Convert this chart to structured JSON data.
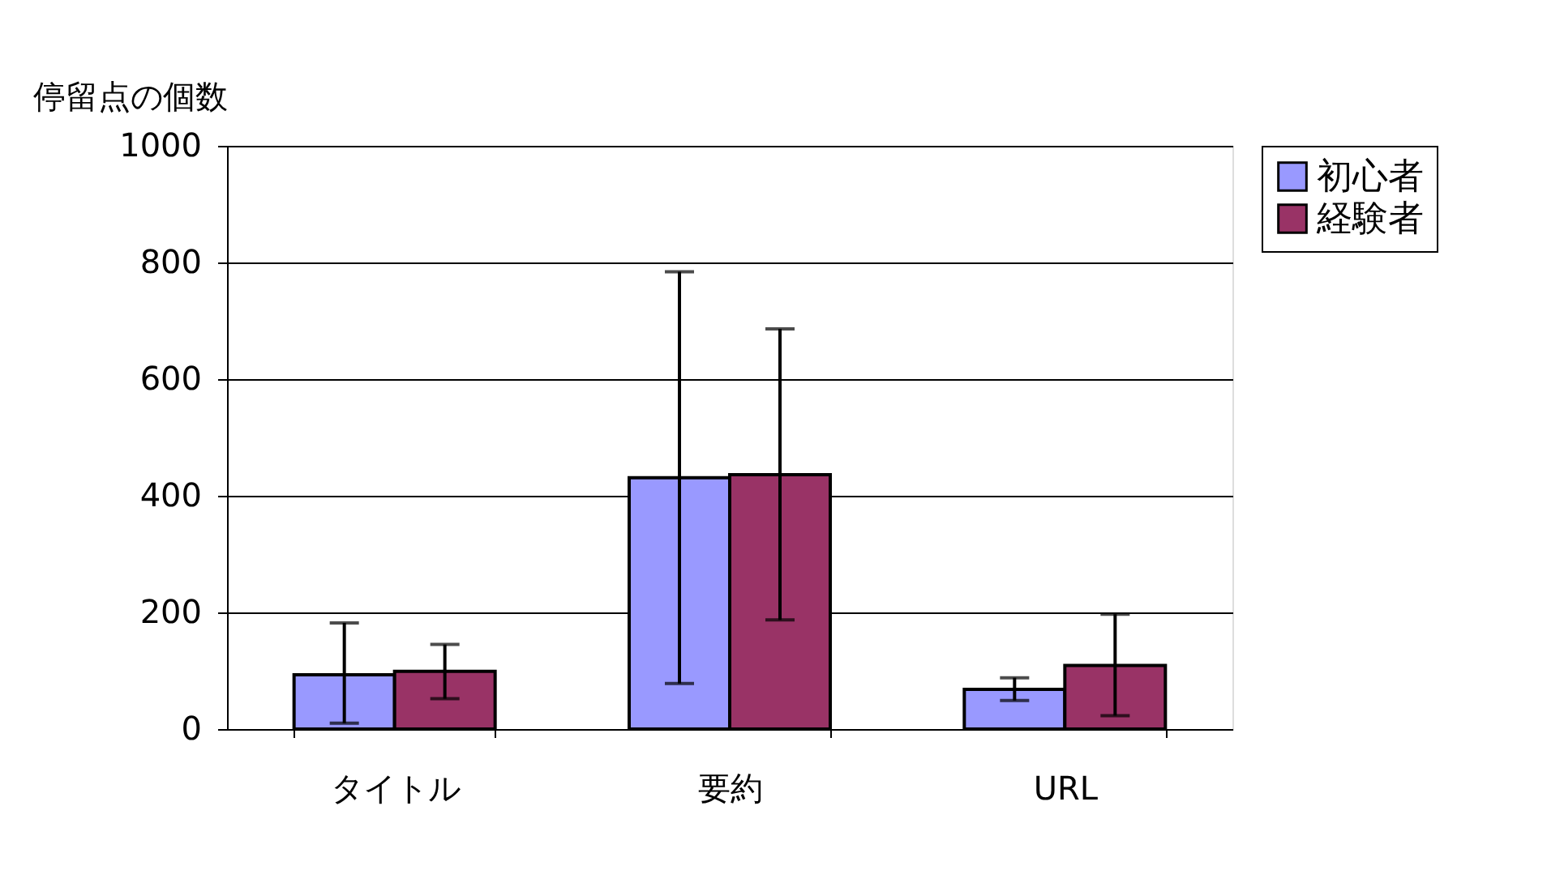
{
  "chart_data": {
    "type": "bar",
    "ylabel": "停留点の個数",
    "categories": [
      "タイトル",
      "要約",
      "URL"
    ],
    "series": [
      {
        "name": "初心者",
        "color": "#9999ff",
        "values": [
          93,
          431,
          68
        ],
        "errors": [
          [
            10,
            182
          ],
          [
            78,
            784
          ],
          [
            49,
            88
          ]
        ]
      },
      {
        "name": "経験者",
        "color": "#993366",
        "values": [
          99,
          436,
          109
        ],
        "errors": [
          [
            52,
            145
          ],
          [
            187,
            686
          ],
          [
            23,
            197
          ]
        ]
      }
    ],
    "ylim": [
      0,
      1000
    ],
    "yticks": [
      0,
      200,
      400,
      600,
      800,
      1000
    ],
    "grid": "y",
    "legend": "right"
  }
}
